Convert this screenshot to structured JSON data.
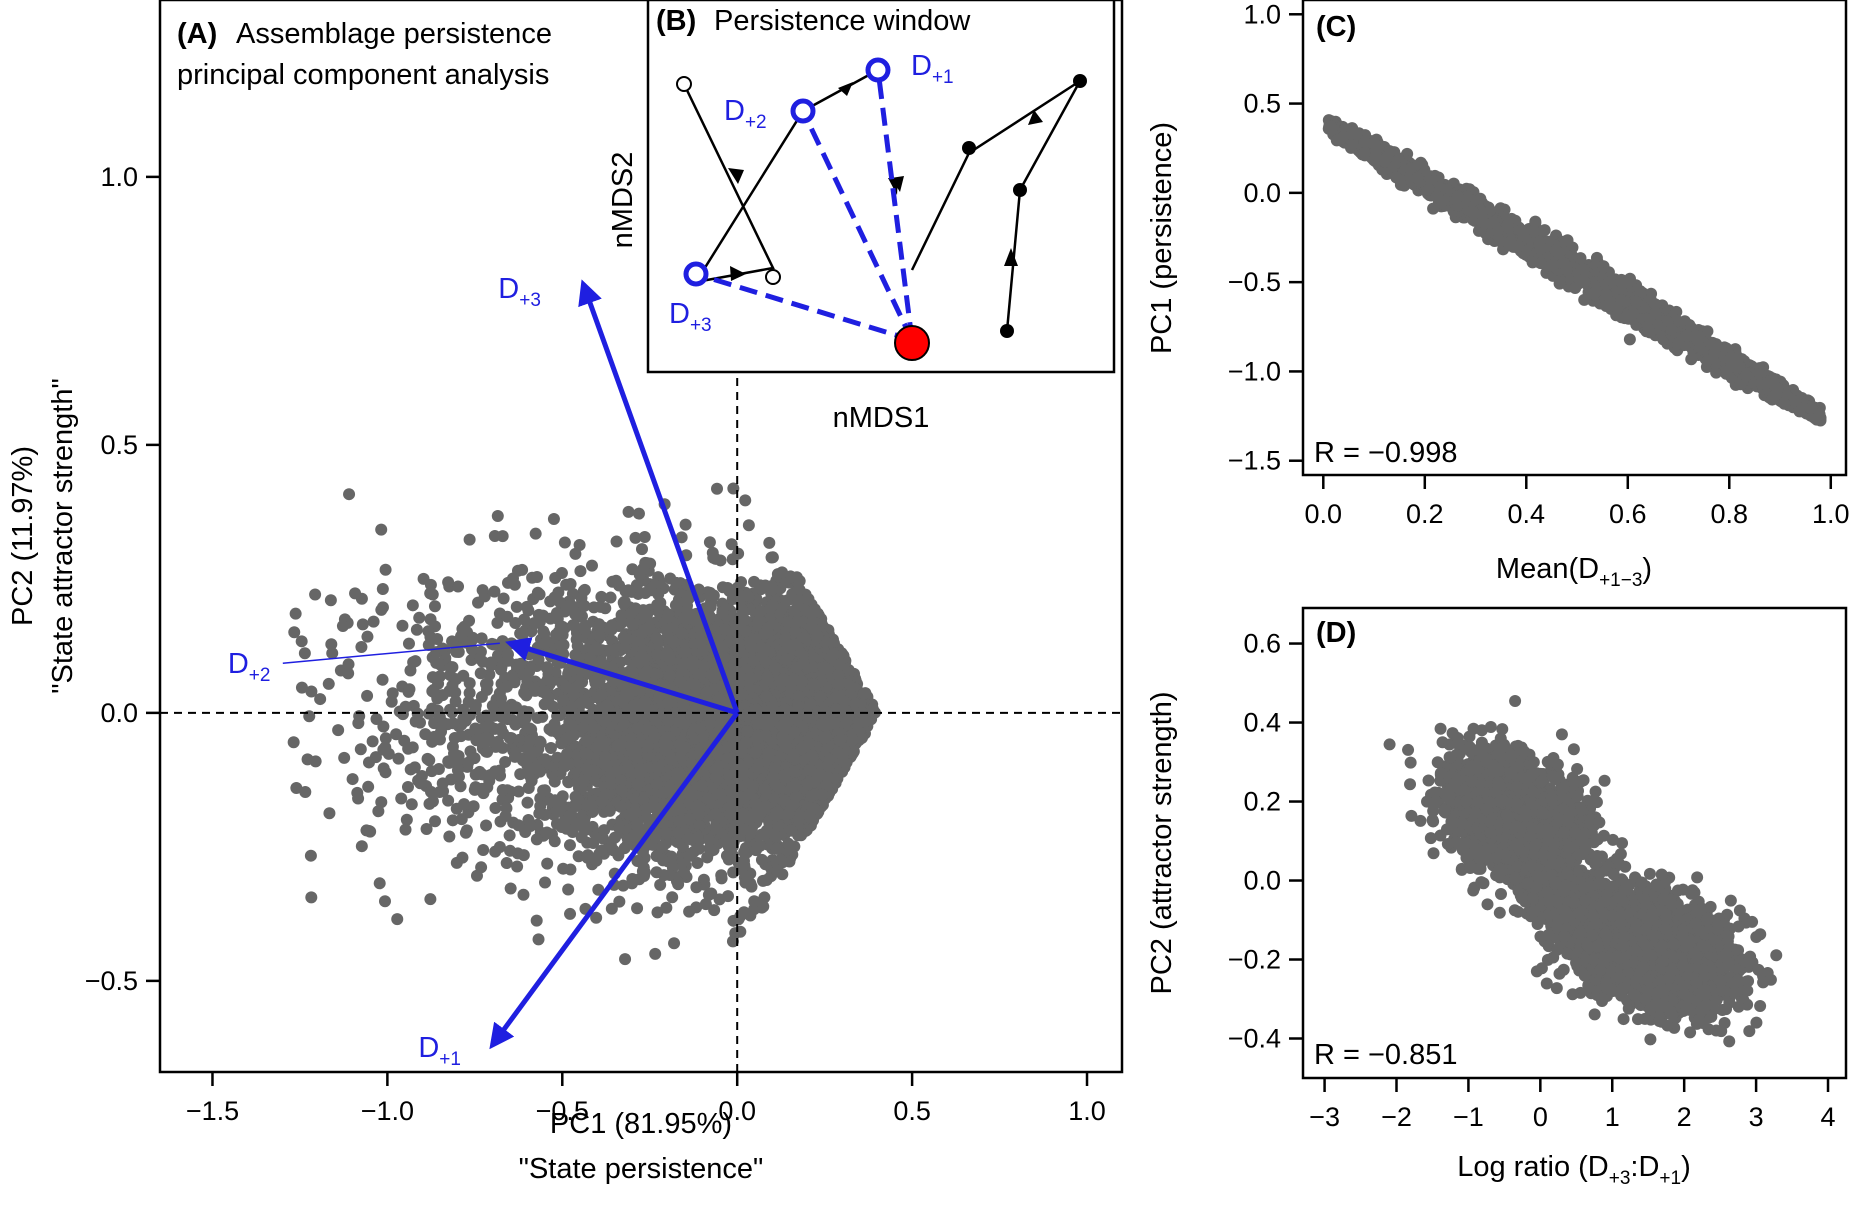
{
  "chart_data": [
    {
      "panel": "A",
      "type": "scatter",
      "title_bold": "(A)",
      "title_lines": [
        "Assemblage persistence",
        "principal component analysis"
      ],
      "xlabel": "PC1 (81.95%)",
      "xlabel2": "\"State persistence\"",
      "ylabel": "PC2 (11.97%)",
      "ylabel2": "\"State attractor strength\"",
      "xlim": [
        -1.65,
        1.1
      ],
      "ylim": [
        -0.67,
        1.33
      ],
      "xticks": [
        -1.5,
        -1.0,
        -0.5,
        0.0,
        0.5,
        1.0
      ],
      "xtick_labels": [
        "−1.5",
        "−1.0",
        "−0.5",
        "0.0",
        "0.5",
        "1.0"
      ],
      "yticks": [
        -0.5,
        0.0,
        0.5,
        1.0
      ],
      "ytick_labels": [
        "−0.5",
        "0.0",
        "0.5",
        "1.0"
      ],
      "reference_lines": {
        "x": 0,
        "y": 0
      },
      "point_color": "#666666",
      "loadings": [
        {
          "label": "D",
          "sub": "+3",
          "x": -0.44,
          "y": 0.8
        },
        {
          "label": "D",
          "sub": "+2",
          "x": -0.65,
          "y": 0.13
        },
        {
          "label": "D",
          "sub": "+1",
          "x": -0.7,
          "y": -0.62
        }
      ],
      "arrow_color": "#1f1fe0"
    },
    {
      "panel": "B",
      "type": "diagram",
      "title_bold": "(B)",
      "title": "Persistence window",
      "xlabel": "nMDS1",
      "ylabel": "nMDS2",
      "labels": [
        {
          "label": "D",
          "sub": "+1"
        },
        {
          "label": "D",
          "sub": "+2"
        },
        {
          "label": "D",
          "sub": "+3"
        }
      ],
      "origin_color": "#ff0000",
      "highlight_color": "#1f1fe0"
    },
    {
      "panel": "C",
      "type": "scatter",
      "title_bold": "(C)",
      "xlabel_main": "Mean(D",
      "xlabel_sub": "+1−3",
      "xlabel_end": ")",
      "ylabel": "PC1 (persistence)",
      "xlim": [
        -0.04,
        1.03
      ],
      "ylim": [
        -1.58,
        1.08
      ],
      "xticks": [
        0.0,
        0.2,
        0.4,
        0.6,
        0.8,
        1.0
      ],
      "xtick_labels": [
        "0.0",
        "0.2",
        "0.4",
        "0.6",
        "0.8",
        "1.0"
      ],
      "yticks": [
        -1.5,
        -1.0,
        -0.5,
        0.0,
        0.5,
        1.0
      ],
      "ytick_labels": [
        "−1.5",
        "−1.0",
        "−0.5",
        "0.0",
        "0.5",
        "1.0"
      ],
      "annotation": "R = −0.998",
      "trend": {
        "x": [
          0.01,
          0.98
        ],
        "y": [
          0.38,
          -1.25
        ]
      },
      "point_color": "#666666"
    },
    {
      "panel": "D",
      "type": "scatter",
      "title_bold": "(D)",
      "xlabel_main": "Log ratio (D",
      "xlabel_sub1": "+3",
      "xlabel_mid": ":D",
      "xlabel_sub2": "+1",
      "xlabel_end": ")",
      "ylabel": "PC2 (attractor strength)",
      "xlim": [
        -3.3,
        4.25
      ],
      "ylim": [
        -0.5,
        0.69
      ],
      "xticks": [
        -3,
        -2,
        -1,
        0,
        1,
        2,
        3,
        4
      ],
      "xtick_labels": [
        "−3",
        "−2",
        "−1",
        "0",
        "1",
        "2",
        "3",
        "4"
      ],
      "yticks": [
        -0.4,
        -0.2,
        0.0,
        0.2,
        0.4,
        0.6
      ],
      "ytick_labels": [
        "−0.4",
        "−0.2",
        "0.0",
        "0.2",
        "0.4",
        "0.6"
      ],
      "annotation": "R = −0.851",
      "point_color": "#666666"
    }
  ]
}
